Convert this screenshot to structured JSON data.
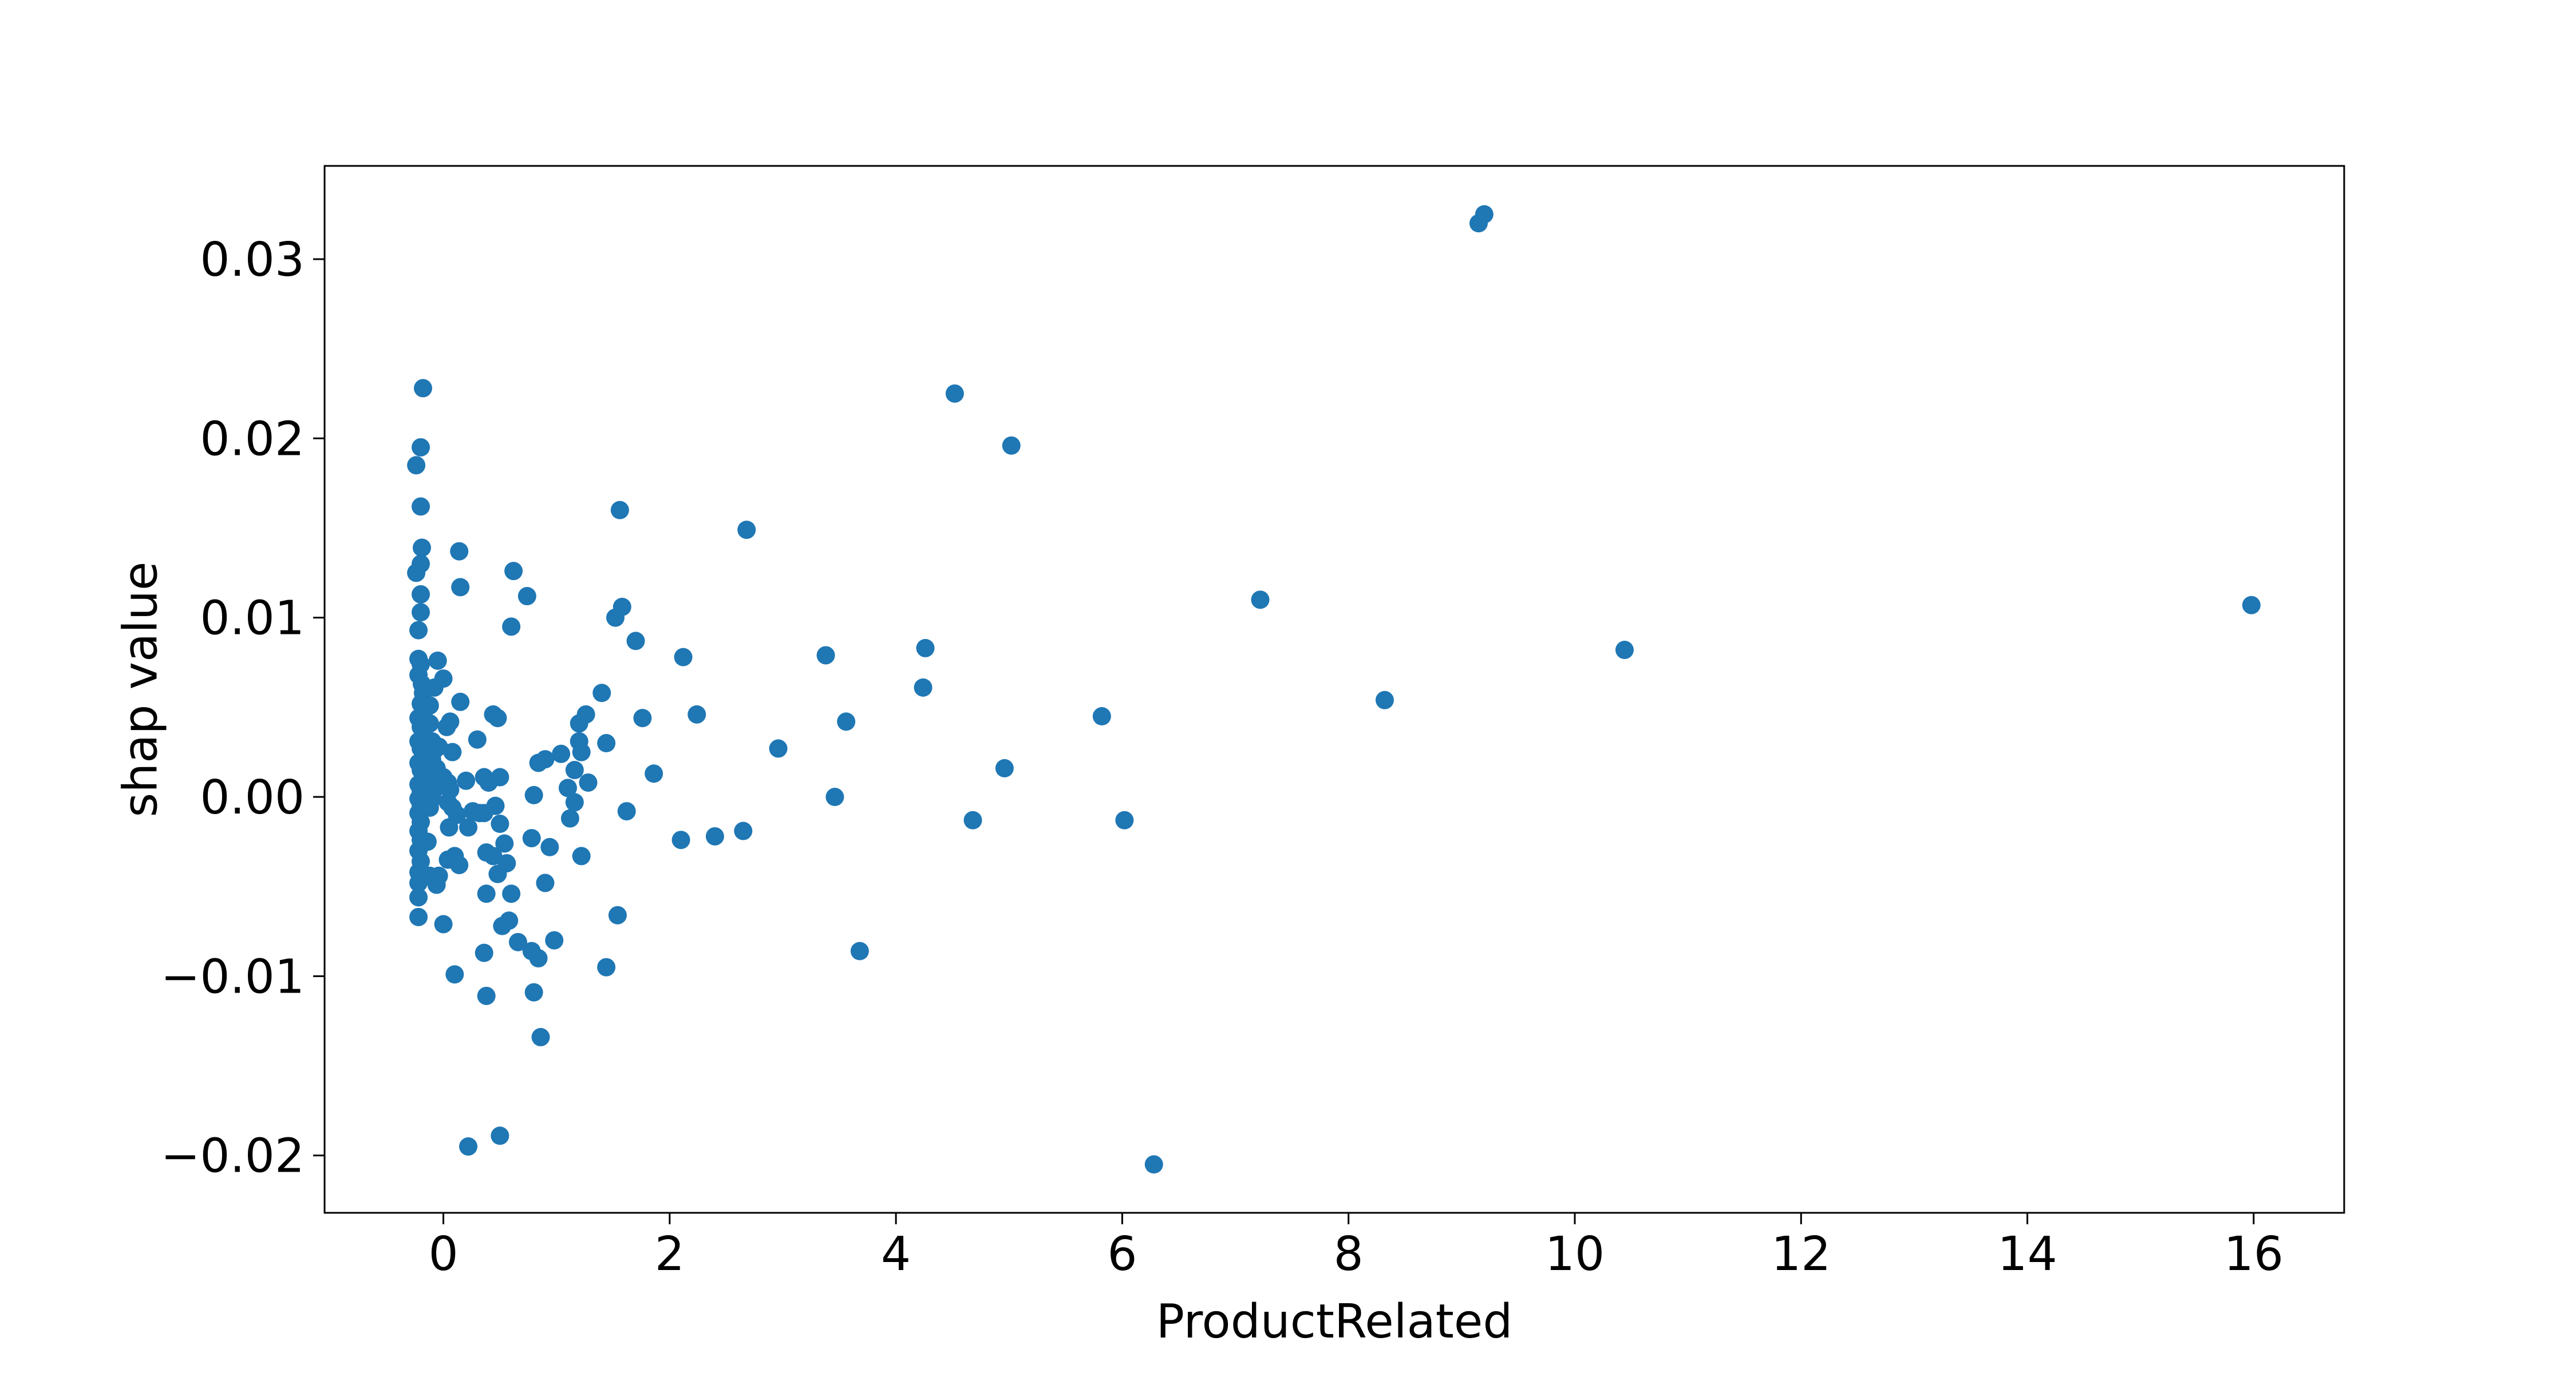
{
  "chart_data": {
    "type": "scatter",
    "title": "",
    "xlabel": "ProductRelated",
    "ylabel": "shap value",
    "xlim": [
      -1.05,
      16.8
    ],
    "ylim": [
      -0.0232,
      0.0352
    ],
    "xticks": [
      0,
      2,
      4,
      6,
      8,
      10,
      12,
      14,
      16
    ],
    "yticks": [
      -0.02,
      -0.01,
      0.0,
      0.01,
      0.02,
      0.03
    ],
    "ytick_labels": [
      "−0.02",
      "−0.01",
      "0.00",
      "0.01",
      "0.02",
      "0.03"
    ],
    "grid": false,
    "legend": false,
    "marker_color": "#1f77b4",
    "points": [
      [
        9.15,
        0.032
      ],
      [
        9.2,
        0.0325
      ],
      [
        -0.18,
        0.0228
      ],
      [
        -0.2,
        0.0195
      ],
      [
        -0.24,
        0.0185
      ],
      [
        -0.2,
        0.0162
      ],
      [
        -0.19,
        0.0139
      ],
      [
        -0.2,
        0.013
      ],
      [
        -0.24,
        0.0125
      ],
      [
        -0.2,
        0.0113
      ],
      [
        -0.2,
        0.0103
      ],
      [
        -0.22,
        0.0093
      ],
      [
        -0.22,
        0.0077
      ],
      [
        -0.2,
        0.0074
      ],
      [
        -0.22,
        0.0068
      ],
      [
        -0.19,
        0.0063
      ],
      [
        -0.18,
        0.0058
      ],
      [
        -0.2,
        0.0052
      ],
      [
        -0.17,
        0.0048
      ],
      [
        -0.22,
        0.0044
      ],
      [
        -0.2,
        0.0039
      ],
      [
        -0.18,
        0.0035
      ],
      [
        -0.22,
        0.0031
      ],
      [
        -0.2,
        0.0027
      ],
      [
        -0.16,
        0.0023
      ],
      [
        -0.22,
        0.0019
      ],
      [
        -0.2,
        0.0015
      ],
      [
        -0.18,
        0.0011
      ],
      [
        -0.22,
        0.0007
      ],
      [
        -0.2,
        0.0003
      ],
      [
        -0.22,
        -0.0001
      ],
      [
        -0.2,
        -0.0005
      ],
      [
        -0.22,
        -0.0009
      ],
      [
        -0.2,
        -0.0014
      ],
      [
        -0.22,
        -0.0019
      ],
      [
        -0.2,
        -0.0024
      ],
      [
        -0.22,
        -0.003
      ],
      [
        -0.2,
        -0.0036
      ],
      [
        -0.22,
        -0.0042
      ],
      [
        -0.22,
        -0.0048
      ],
      [
        -0.22,
        -0.0056
      ],
      [
        -0.22,
        -0.0067
      ],
      [
        -0.12,
        0.0051
      ],
      [
        -0.12,
        0.0041
      ],
      [
        -0.1,
        0.0031
      ],
      [
        -0.08,
        0.0026
      ],
      [
        -0.1,
        0.0021
      ],
      [
        -0.06,
        0.0016
      ],
      [
        -0.12,
        0.0009
      ],
      [
        -0.08,
        0.0004
      ],
      [
        -0.1,
        -0.0001
      ],
      [
        -0.12,
        -0.0006
      ],
      [
        -0.14,
        -0.0025
      ],
      [
        -0.12,
        -0.0044
      ],
      [
        -0.05,
        0.0076
      ],
      [
        -0.08,
        0.0061
      ],
      [
        -0.04,
        0.0028
      ],
      [
        -0.06,
        -0.0049
      ],
      [
        -0.04,
        -0.0044
      ],
      [
        0.0,
        0.0066
      ],
      [
        0.03,
        0.0039
      ],
      [
        0.06,
        0.0042
      ],
      [
        0.08,
        0.0025
      ],
      [
        0.0,
        0.0011
      ],
      [
        0.04,
        0.0008
      ],
      [
        0.06,
        0.0004
      ],
      [
        0.04,
        -0.0003
      ],
      [
        0.08,
        -0.0006
      ],
      [
        0.12,
        -0.001
      ],
      [
        0.05,
        -0.0017
      ],
      [
        0.1,
        -0.0033
      ],
      [
        0.04,
        -0.0035
      ],
      [
        0.14,
        -0.0038
      ],
      [
        0.0,
        -0.0071
      ],
      [
        0.1,
        -0.0099
      ],
      [
        0.14,
        0.0137
      ],
      [
        0.15,
        0.0117
      ],
      [
        0.15,
        0.0053
      ],
      [
        0.2,
        0.0009
      ],
      [
        0.22,
        -0.0017
      ],
      [
        0.26,
        -0.0008
      ],
      [
        0.3,
        0.0032
      ],
      [
        0.32,
        -0.0009
      ],
      [
        0.36,
        0.0011
      ],
      [
        0.4,
        0.0008
      ],
      [
        0.36,
        -0.0009
      ],
      [
        0.38,
        -0.0031
      ],
      [
        0.38,
        -0.0054
      ],
      [
        0.36,
        -0.0087
      ],
      [
        0.38,
        -0.0111
      ],
      [
        0.22,
        -0.0195
      ],
      [
        0.44,
        0.0046
      ],
      [
        0.48,
        0.0044
      ],
      [
        0.5,
        0.0011
      ],
      [
        0.46,
        -0.0005
      ],
      [
        0.5,
        -0.0015
      ],
      [
        0.44,
        -0.0033
      ],
      [
        0.48,
        -0.0043
      ],
      [
        0.52,
        -0.0072
      ],
      [
        0.5,
        -0.0189
      ],
      [
        0.54,
        -0.0026
      ],
      [
        0.56,
        -0.0037
      ],
      [
        0.58,
        -0.0069
      ],
      [
        0.6,
        -0.0054
      ],
      [
        0.6,
        0.0095
      ],
      [
        0.62,
        0.0126
      ],
      [
        0.66,
        -0.0081
      ],
      [
        0.74,
        0.0112
      ],
      [
        0.78,
        -0.0023
      ],
      [
        0.78,
        -0.0086
      ],
      [
        0.8,
        -0.0109
      ],
      [
        0.8,
        0.0001
      ],
      [
        0.84,
        0.0019
      ],
      [
        0.84,
        -0.009
      ],
      [
        0.86,
        -0.0134
      ],
      [
        0.9,
        0.0021
      ],
      [
        0.9,
        -0.0048
      ],
      [
        0.94,
        -0.0028
      ],
      [
        0.98,
        -0.008
      ],
      [
        1.04,
        0.0024
      ],
      [
        1.1,
        0.0005
      ],
      [
        1.12,
        -0.0012
      ],
      [
        1.16,
        0.0015
      ],
      [
        1.16,
        -0.0003
      ],
      [
        1.2,
        0.0031
      ],
      [
        1.2,
        0.0041
      ],
      [
        1.22,
        0.0025
      ],
      [
        1.22,
        -0.0033
      ],
      [
        1.26,
        0.0046
      ],
      [
        1.28,
        0.0008
      ],
      [
        1.4,
        0.0058
      ],
      [
        1.44,
        0.003
      ],
      [
        1.44,
        -0.0095
      ],
      [
        1.52,
        0.01
      ],
      [
        1.54,
        -0.0066
      ],
      [
        1.56,
        0.016
      ],
      [
        1.58,
        0.0106
      ],
      [
        1.62,
        -0.0008
      ],
      [
        1.7,
        0.0087
      ],
      [
        1.76,
        0.0044
      ],
      [
        1.86,
        0.0013
      ],
      [
        2.1,
        -0.0024
      ],
      [
        2.12,
        0.0078
      ],
      [
        2.24,
        0.0046
      ],
      [
        2.4,
        -0.0022
      ],
      [
        2.65,
        -0.0019
      ],
      [
        2.68,
        0.0149
      ],
      [
        2.96,
        0.0027
      ],
      [
        3.38,
        0.0079
      ],
      [
        3.46,
        0.0
      ],
      [
        3.56,
        0.0042
      ],
      [
        3.68,
        -0.0086
      ],
      [
        4.24,
        0.0061
      ],
      [
        4.26,
        0.0083
      ],
      [
        4.52,
        0.0225
      ],
      [
        4.68,
        -0.0013
      ],
      [
        4.96,
        0.0016
      ],
      [
        5.02,
        0.0196
      ],
      [
        5.82,
        0.0045
      ],
      [
        6.02,
        -0.0013
      ],
      [
        6.28,
        -0.0205
      ],
      [
        7.22,
        0.011
      ],
      [
        8.32,
        0.0054
      ],
      [
        10.44,
        0.0082
      ],
      [
        15.98,
        0.0107
      ]
    ]
  }
}
